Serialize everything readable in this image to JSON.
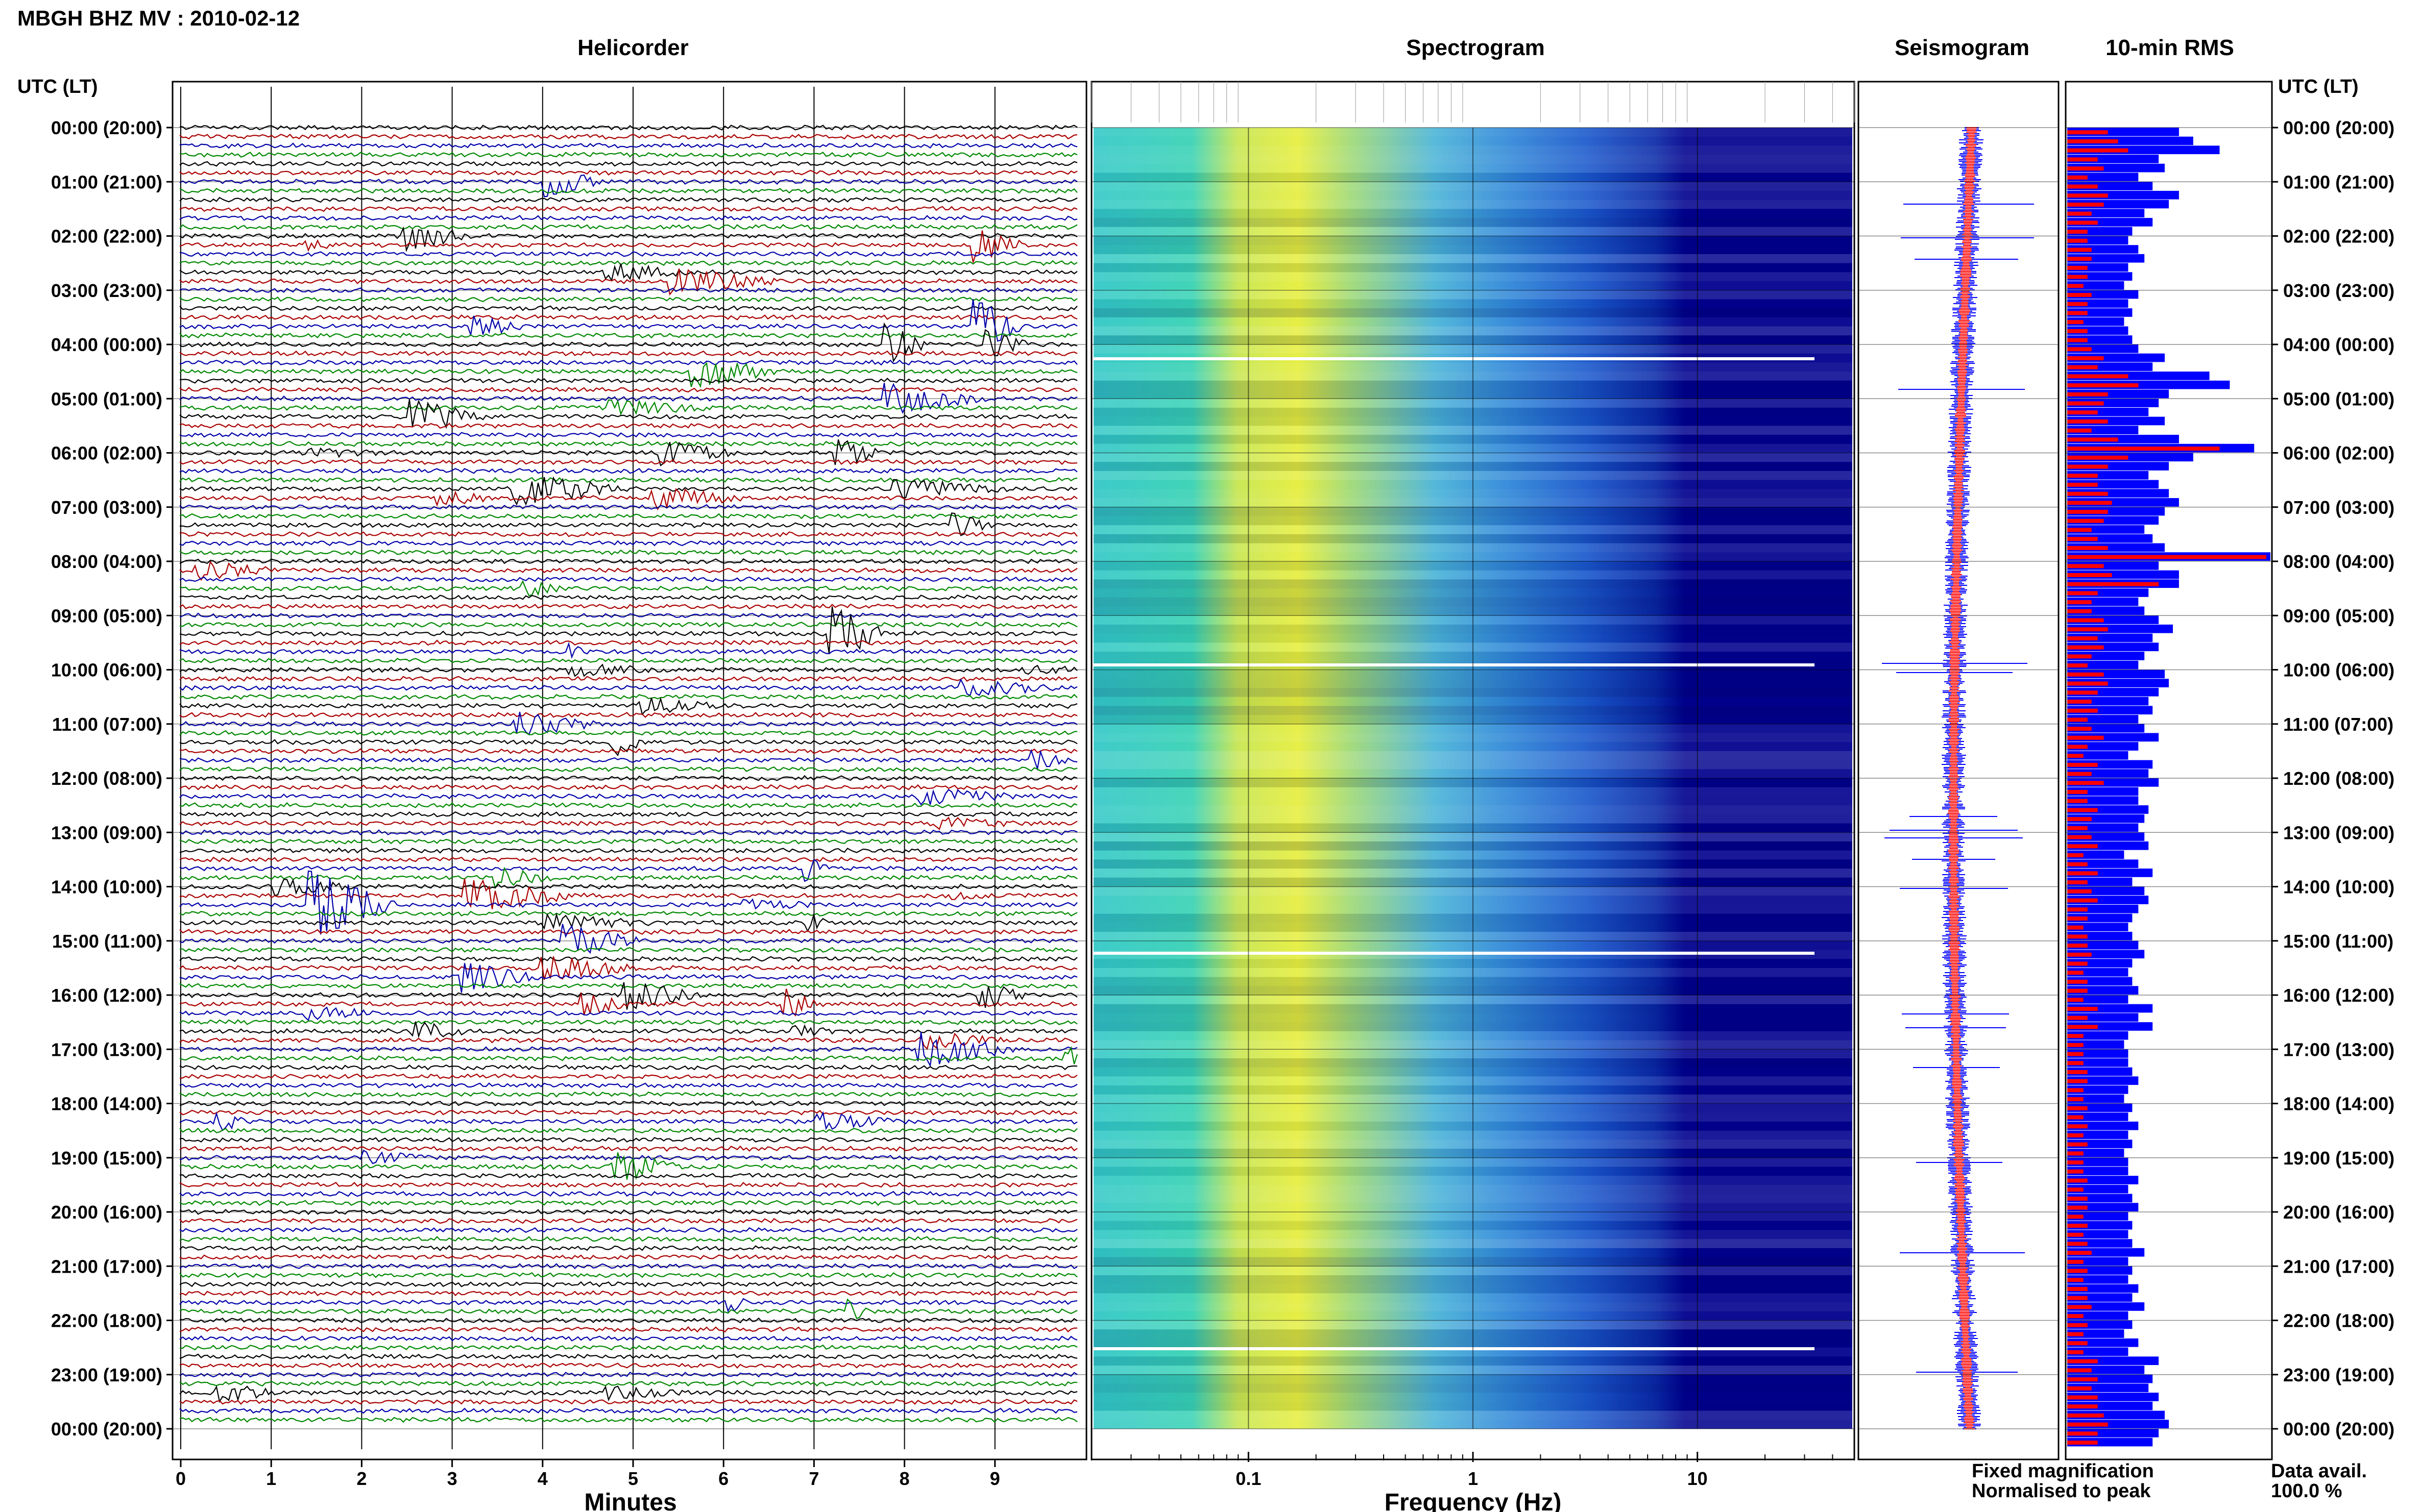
{
  "title": "MBGH BHZ MV : 2010-02-12",
  "panels": {
    "helicorder": "Helicorder",
    "spectrogram": "Spectrogram",
    "seismogram": "Seismogram",
    "rms": "10-min RMS"
  },
  "time_axis": {
    "label": "UTC (LT)",
    "ticks": [
      "00:00 (20:00)",
      "01:00 (21:00)",
      "02:00 (22:00)",
      "03:00 (23:00)",
      "04:00 (00:00)",
      "05:00 (01:00)",
      "06:00 (02:00)",
      "07:00 (03:00)",
      "08:00 (04:00)",
      "09:00 (05:00)",
      "10:00 (06:00)",
      "11:00 (07:00)",
      "12:00 (08:00)",
      "13:00 (09:00)",
      "14:00 (10:00)",
      "15:00 (11:00)",
      "16:00 (12:00)",
      "17:00 (13:00)",
      "18:00 (14:00)",
      "19:00 (15:00)",
      "20:00 (16:00)",
      "21:00 (17:00)",
      "22:00 (18:00)",
      "23:00 (19:00)",
      "00:00 (20:00)"
    ]
  },
  "helicorder_axis": {
    "label": "Minutes",
    "ticks": [
      "0",
      "1",
      "2",
      "3",
      "4",
      "5",
      "6",
      "7",
      "8",
      "9"
    ],
    "trace_colors": [
      "#000000",
      "#aa0000",
      "#0000aa",
      "#008800"
    ]
  },
  "spectrogram_axis": {
    "label": "Frequency (Hz)",
    "scale": "log",
    "ticks": [
      "0.1",
      "1",
      "10"
    ],
    "xlim": [
      0.02,
      50
    ]
  },
  "legend": {
    "fixed": "Fixed magnification",
    "normalised": "Normalised to peak",
    "fixed_color": "#0000ff",
    "normalised_color": "#ff0000"
  },
  "availability": {
    "label": "Data avail.",
    "value": "100.0 %"
  },
  "chart_data": {
    "type": "bar",
    "title": "10-min RMS",
    "series": [
      {
        "name": "Fixed magnification",
        "values": [
          0.55,
          0.62,
          0.75,
          0.45,
          0.48,
          0.35,
          0.42,
          0.55,
          0.5,
          0.38,
          0.42,
          0.32,
          0.3,
          0.35,
          0.38,
          0.3,
          0.32,
          0.28,
          0.35,
          0.3,
          0.32,
          0.28,
          0.3,
          0.32,
          0.35,
          0.48,
          0.42,
          0.7,
          0.8,
          0.5,
          0.45,
          0.4,
          0.48,
          0.35,
          0.55,
          0.92,
          0.62,
          0.5,
          0.4,
          0.45,
          0.5,
          0.55,
          0.48,
          0.45,
          0.38,
          0.42,
          0.48,
          1.0,
          0.45,
          0.55,
          0.55,
          0.4,
          0.35,
          0.38,
          0.45,
          0.52,
          0.42,
          0.45,
          0.38,
          0.35,
          0.48,
          0.5,
          0.45,
          0.4,
          0.42,
          0.35,
          0.38,
          0.45,
          0.35,
          0.3,
          0.42,
          0.4,
          0.45,
          0.35,
          0.35,
          0.4,
          0.38,
          0.35,
          0.38,
          0.4,
          0.28,
          0.35,
          0.42,
          0.32,
          0.38,
          0.4,
          0.35,
          0.32,
          0.3,
          0.32,
          0.35,
          0.38,
          0.32,
          0.3,
          0.32,
          0.35,
          0.3,
          0.42,
          0.35,
          0.42,
          0.3,
          0.28,
          0.3,
          0.3,
          0.32,
          0.35,
          0.3,
          0.28,
          0.32,
          0.3,
          0.35,
          0.3,
          0.32,
          0.28,
          0.3,
          0.3,
          0.35,
          0.3,
          0.32,
          0.35,
          0.3,
          0.32,
          0.3,
          0.32,
          0.38,
          0.3,
          0.32,
          0.3,
          0.35,
          0.32,
          0.38,
          0.3,
          0.32,
          0.28,
          0.35,
          0.3,
          0.45,
          0.38,
          0.42,
          0.4,
          0.45,
          0.42,
          0.48,
          0.5,
          0.45,
          0.42
        ]
      },
      {
        "name": "Normalised to peak",
        "values": [
          0.2,
          0.25,
          0.3,
          0.15,
          0.18,
          0.1,
          0.15,
          0.2,
          0.18,
          0.12,
          0.15,
          0.1,
          0.1,
          0.12,
          0.12,
          0.1,
          0.1,
          0.08,
          0.12,
          0.1,
          0.1,
          0.08,
          0.1,
          0.1,
          0.12,
          0.18,
          0.15,
          0.3,
          0.35,
          0.2,
          0.18,
          0.15,
          0.2,
          0.12,
          0.25,
          0.75,
          0.3,
          0.2,
          0.15,
          0.15,
          0.2,
          0.22,
          0.2,
          0.18,
          0.12,
          0.15,
          0.2,
          0.98,
          0.18,
          0.22,
          0.45,
          0.15,
          0.12,
          0.12,
          0.18,
          0.2,
          0.15,
          0.18,
          0.12,
          0.1,
          0.18,
          0.2,
          0.15,
          0.12,
          0.15,
          0.1,
          0.12,
          0.18,
          0.1,
          0.08,
          0.15,
          0.12,
          0.18,
          0.1,
          0.1,
          0.15,
          0.12,
          0.1,
          0.12,
          0.15,
          0.08,
          0.1,
          0.15,
          0.1,
          0.12,
          0.15,
          0.1,
          0.1,
          0.08,
          0.1,
          0.1,
          0.12,
          0.1,
          0.08,
          0.1,
          0.1,
          0.08,
          0.15,
          0.1,
          0.15,
          0.08,
          0.08,
          0.08,
          0.08,
          0.1,
          0.1,
          0.08,
          0.08,
          0.1,
          0.08,
          0.1,
          0.08,
          0.1,
          0.08,
          0.08,
          0.08,
          0.1,
          0.08,
          0.1,
          0.1,
          0.08,
          0.1,
          0.08,
          0.1,
          0.12,
          0.08,
          0.1,
          0.08,
          0.1,
          0.1,
          0.12,
          0.08,
          0.1,
          0.08,
          0.1,
          0.08,
          0.15,
          0.12,
          0.15,
          0.12,
          0.15,
          0.15,
          0.18,
          0.2,
          0.15,
          0.15
        ]
      }
    ]
  }
}
